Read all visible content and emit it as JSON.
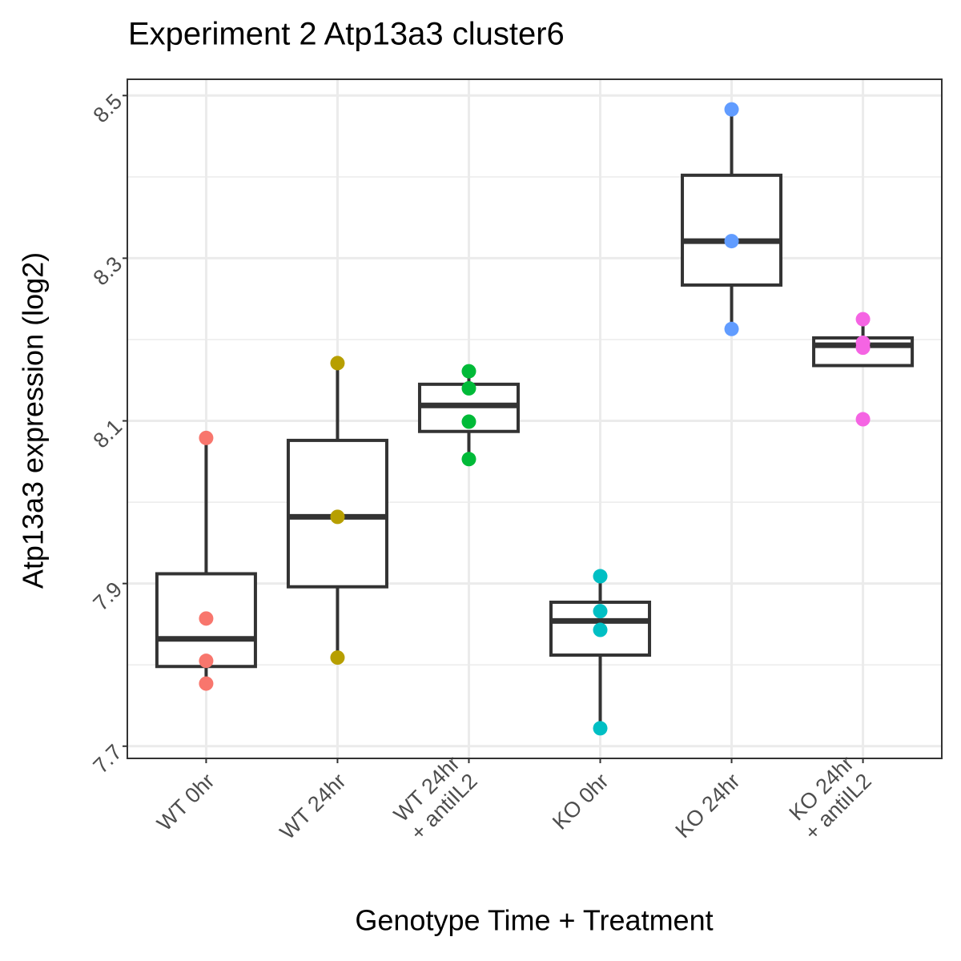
{
  "chart_data": {
    "type": "box",
    "title": "Experiment 2 Atp13a3 cluster6",
    "x_label": "Genotype Time + Treatment",
    "y_label": "Atp13a3 expression (log2)",
    "categories": [
      "WT 0hr",
      "WT 24hr",
      "WT 24hr\n+ antiIL2",
      "KO 0hr",
      "KO 24hr",
      "KO 24hr\n+ antiIL2"
    ],
    "boxes": [
      {
        "color": "#F8766D",
        "whisker_low": 7.777,
        "q1": 7.798,
        "median": 7.832,
        "q3": 7.912,
        "whisker_high": 8.079,
        "points": [
          8.079,
          7.857,
          7.805,
          7.777
        ]
      },
      {
        "color": "#B79F00",
        "whisker_low": 7.809,
        "q1": 7.896,
        "median": 7.982,
        "q3": 8.076,
        "whisker_high": 8.171,
        "points": [
          8.171,
          7.982,
          7.809
        ]
      },
      {
        "color": "#00BA38",
        "whisker_low": 8.053,
        "q1": 8.087,
        "median": 8.119,
        "q3": 8.145,
        "whisker_high": 8.161,
        "points": [
          8.161,
          8.14,
          8.099,
          8.053
        ]
      },
      {
        "color": "#00BFC4",
        "whisker_low": 7.722,
        "q1": 7.812,
        "median": 7.854,
        "q3": 7.877,
        "whisker_high": 7.909,
        "points": [
          7.909,
          7.866,
          7.843,
          7.722
        ]
      },
      {
        "color": "#619CFF",
        "whisker_low": 8.213,
        "q1": 8.267,
        "median": 8.321,
        "q3": 8.402,
        "whisker_high": 8.483,
        "points": [
          8.483,
          8.321,
          8.213
        ]
      },
      {
        "color": "#F564E3",
        "whisker_low": 8.168,
        "q1": 8.168,
        "median": 8.193,
        "q3": 8.202,
        "whisker_high": 8.225,
        "points": [
          8.225,
          8.196,
          8.19,
          8.102
        ]
      }
    ],
    "ylim": [
      7.685,
      8.52
    ],
    "yticks": [
      7.7,
      7.9,
      8.1,
      8.3,
      8.5
    ],
    "minor_yticks": [
      7.8,
      8.0,
      8.2,
      8.4
    ],
    "grid": true
  }
}
